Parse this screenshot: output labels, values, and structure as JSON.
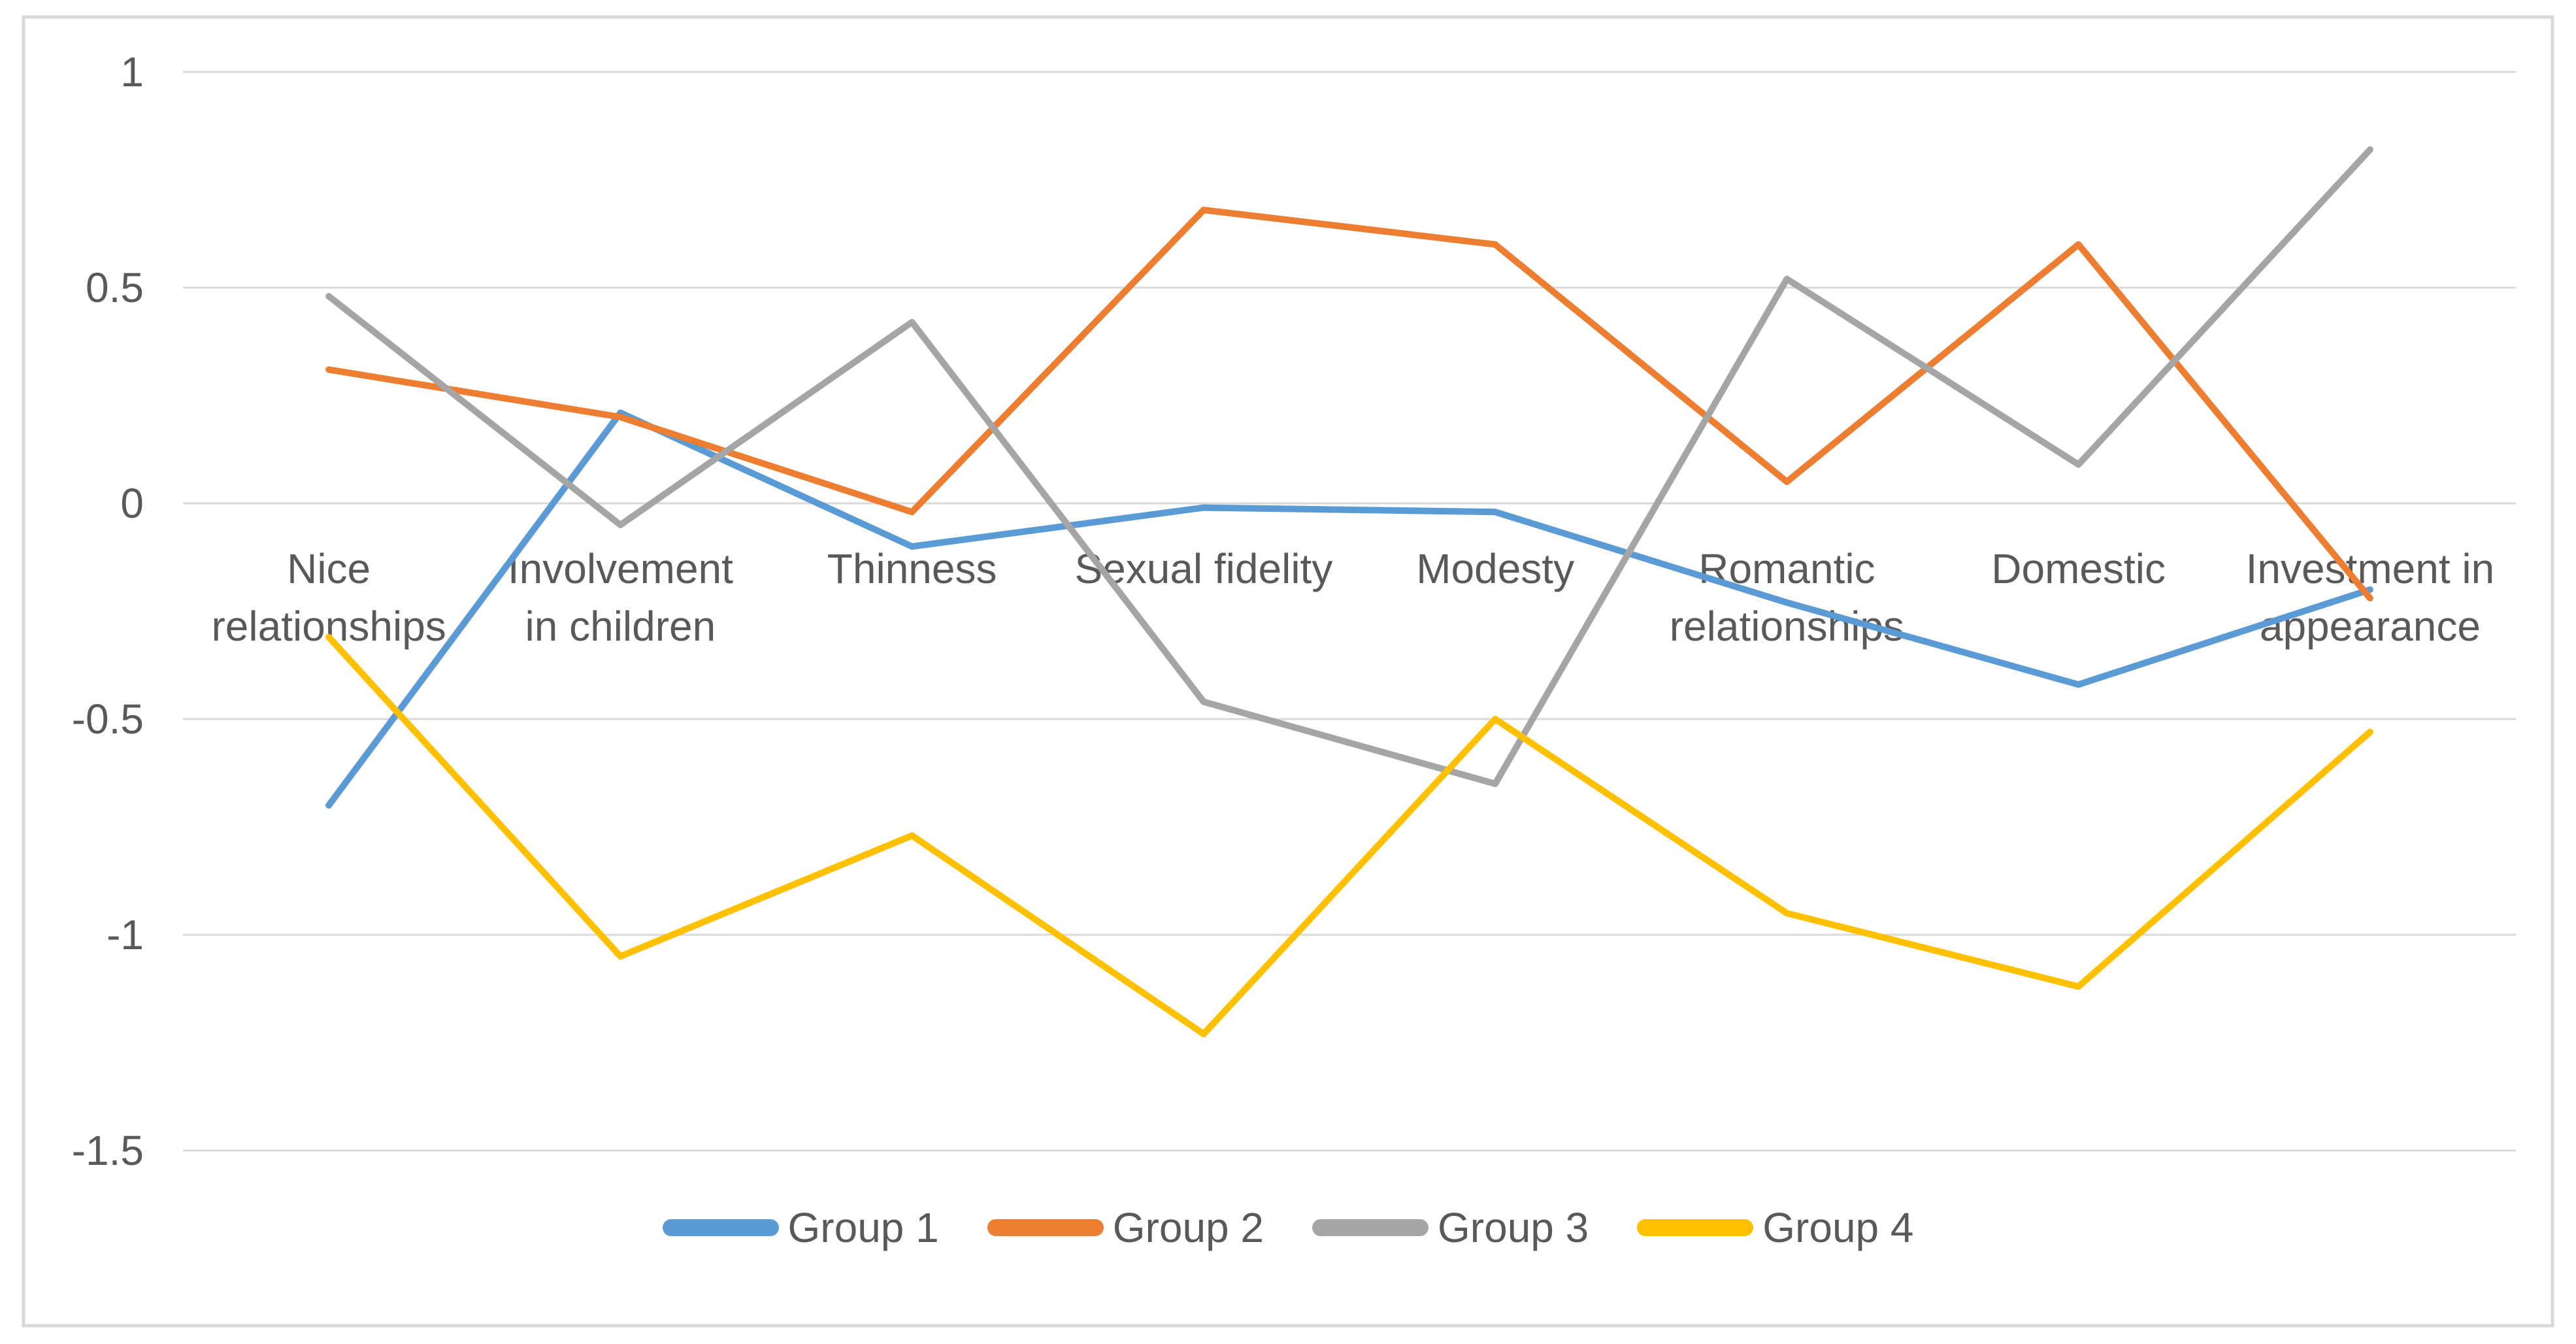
{
  "chart_data": {
    "type": "line",
    "title": "",
    "categories": [
      "Nice relationships",
      "Involvement in children",
      "Thinness",
      "Sexual fidelity",
      "Modesty",
      "Romantic relationships",
      "Domestic",
      "Investment in appearance"
    ],
    "category_label_lines": [
      [
        "Nice",
        "relationships"
      ],
      [
        "Involvement",
        "in children"
      ],
      [
        "Thinness"
      ],
      [
        "Sexual fidelity"
      ],
      [
        "Modesty"
      ],
      [
        "Romantic",
        "relationships"
      ],
      [
        "Domestic"
      ],
      [
        "Investment in",
        "appearance"
      ]
    ],
    "series": [
      {
        "name": "Group 1",
        "color": "#5B9BD5",
        "values": [
          -0.7,
          0.21,
          -0.1,
          -0.01,
          -0.02,
          -0.23,
          -0.42,
          -0.2
        ]
      },
      {
        "name": "Group 2",
        "color": "#ED7D31",
        "values": [
          0.31,
          0.2,
          -0.02,
          0.68,
          0.6,
          0.05,
          0.6,
          -0.22
        ]
      },
      {
        "name": "Group 3",
        "color": "#A5A5A5",
        "values": [
          0.48,
          -0.05,
          0.42,
          -0.46,
          -0.65,
          0.52,
          0.09,
          0.82
        ]
      },
      {
        "name": "Group 4",
        "color": "#FFC000",
        "values": [
          -0.31,
          -1.05,
          -0.77,
          -1.23,
          -0.5,
          -0.95,
          -1.12,
          -0.53
        ]
      }
    ],
    "y_axis": {
      "min": -1.5,
      "max": 1,
      "step": 0.5,
      "tick_labels": [
        "1",
        "0.5",
        "0",
        "-0.5",
        "-1",
        "-1.5"
      ]
    },
    "x_axis_labels_position": "below-zero-line",
    "grid": true,
    "legend_position": "bottom",
    "legend_labels": [
      "Group 1",
      "Group 2",
      "Group 3",
      "Group 4"
    ],
    "colors": {
      "gridline": "#D9D9D9",
      "axis_text": "#595959",
      "border": "#D9D9D9",
      "background": "#FFFFFF"
    }
  }
}
